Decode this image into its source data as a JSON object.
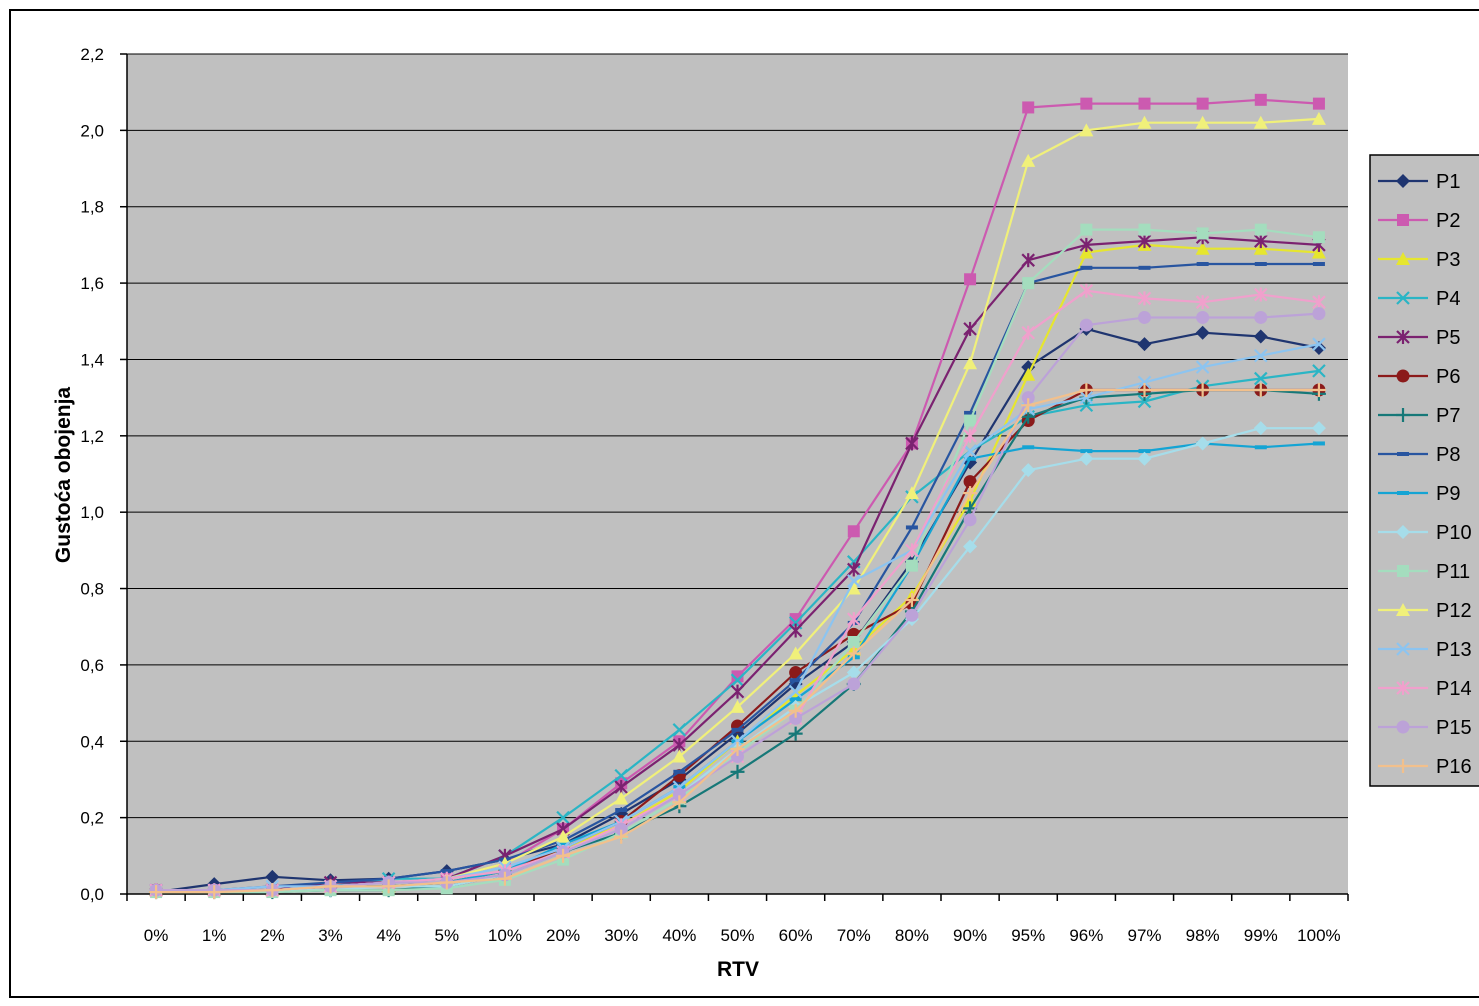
{
  "chart_data": {
    "type": "line",
    "title": "",
    "xlabel": "RTV",
    "ylabel": "Gustoća obojenja",
    "ylim": [
      0,
      2.2
    ],
    "ytick_step": 0.2,
    "ytick_labels": [
      "0,0",
      "0,2",
      "0,4",
      "0,6",
      "0,8",
      "1,0",
      "1,2",
      "1,4",
      "1,6",
      "1,8",
      "2,0",
      "2,2"
    ],
    "grid": true,
    "legend": "right",
    "plot_background": "#C0C0C0",
    "categories": [
      "0%",
      "1%",
      "2%",
      "3%",
      "4%",
      "5%",
      "10%",
      "20%",
      "30%",
      "40%",
      "50%",
      "60%",
      "70%",
      "80%",
      "90%",
      "95%",
      "96%",
      "97%",
      "98%",
      "99%",
      "100%"
    ],
    "series": [
      {
        "name": "P1",
        "color": "#1F3570",
        "marker": "diamond",
        "values": [
          0.005,
          0.026,
          0.045,
          0.036,
          0.04,
          0.06,
          0.09,
          0.13,
          0.21,
          0.3,
          0.42,
          0.55,
          0.66,
          0.87,
          1.13,
          1.38,
          1.48,
          1.44,
          1.47,
          1.46,
          1.43
        ]
      },
      {
        "name": "P2",
        "color": "#CC5AB0",
        "marker": "square",
        "values": [
          0.01,
          0.01,
          0.01,
          0.02,
          0.03,
          0.04,
          0.08,
          0.17,
          0.29,
          0.4,
          0.57,
          0.72,
          0.95,
          1.18,
          1.61,
          2.06,
          2.07,
          2.07,
          2.07,
          2.08,
          2.07
        ]
      },
      {
        "name": "P3",
        "color": "#E6E62E",
        "marker": "triangle",
        "values": [
          0.01,
          0.01,
          0.01,
          0.02,
          0.02,
          0.03,
          0.06,
          0.12,
          0.18,
          0.27,
          0.4,
          0.52,
          0.64,
          0.78,
          1.03,
          1.36,
          1.68,
          1.7,
          1.69,
          1.69,
          1.68
        ]
      },
      {
        "name": "P4",
        "color": "#2AB5C5",
        "marker": "x",
        "values": [
          0.01,
          0.01,
          0.01,
          0.02,
          0.04,
          0.04,
          0.1,
          0.2,
          0.31,
          0.43,
          0.56,
          0.71,
          0.87,
          1.04,
          1.16,
          1.25,
          1.28,
          1.29,
          1.33,
          1.35,
          1.37
        ]
      },
      {
        "name": "P5",
        "color": "#7B2270",
        "marker": "star",
        "values": [
          0.01,
          0.01,
          0.01,
          0.03,
          0.03,
          0.04,
          0.1,
          0.17,
          0.28,
          0.39,
          0.53,
          0.69,
          0.85,
          1.18,
          1.48,
          1.66,
          1.7,
          1.71,
          1.72,
          1.71,
          1.7
        ]
      },
      {
        "name": "P6",
        "color": "#8B1A1A",
        "marker": "circle",
        "values": [
          0.01,
          0.01,
          0.01,
          0.02,
          0.02,
          0.03,
          0.06,
          0.12,
          0.19,
          0.31,
          0.44,
          0.58,
          0.68,
          0.76,
          1.08,
          1.24,
          1.32,
          1.32,
          1.32,
          1.32,
          1.32
        ]
      },
      {
        "name": "P7",
        "color": "#167878",
        "marker": "plus",
        "values": [
          0.005,
          0.005,
          0.005,
          0.01,
          0.01,
          0.02,
          0.05,
          0.11,
          0.16,
          0.23,
          0.32,
          0.42,
          0.55,
          0.74,
          1.01,
          1.25,
          1.3,
          1.31,
          1.32,
          1.32,
          1.31
        ]
      },
      {
        "name": "P8",
        "color": "#2855A0",
        "marker": "dash",
        "values": [
          0.01,
          0.01,
          0.02,
          0.03,
          0.04,
          0.06,
          0.09,
          0.14,
          0.22,
          0.32,
          0.43,
          0.56,
          0.71,
          0.96,
          1.26,
          1.6,
          1.64,
          1.64,
          1.65,
          1.65,
          1.65
        ]
      },
      {
        "name": "P9",
        "color": "#14A4D4",
        "marker": "dash",
        "values": [
          0.01,
          0.01,
          0.01,
          0.02,
          0.02,
          0.03,
          0.06,
          0.13,
          0.19,
          0.28,
          0.4,
          0.51,
          0.62,
          0.86,
          1.14,
          1.17,
          1.16,
          1.16,
          1.18,
          1.17,
          1.18
        ]
      },
      {
        "name": "P10",
        "color": "#A6DDEA",
        "marker": "diamond",
        "values": [
          0.01,
          0.01,
          0.01,
          0.01,
          0.02,
          0.02,
          0.05,
          0.11,
          0.17,
          0.26,
          0.38,
          0.49,
          0.58,
          0.72,
          0.91,
          1.11,
          1.14,
          1.14,
          1.18,
          1.22,
          1.22
        ]
      },
      {
        "name": "P11",
        "color": "#A4DDBE",
        "marker": "square",
        "values": [
          0.005,
          0.005,
          0.005,
          0.01,
          0.01,
          0.015,
          0.037,
          0.09,
          0.16,
          0.25,
          0.37,
          0.48,
          0.66,
          0.86,
          1.24,
          1.6,
          1.74,
          1.74,
          1.73,
          1.74,
          1.72
        ]
      },
      {
        "name": "P12",
        "color": "#F0F07A",
        "marker": "triangle",
        "values": [
          0.01,
          0.01,
          0.01,
          0.02,
          0.03,
          0.04,
          0.08,
          0.15,
          0.25,
          0.36,
          0.49,
          0.63,
          0.8,
          1.05,
          1.39,
          1.92,
          2.0,
          2.02,
          2.02,
          2.02,
          2.03
        ]
      },
      {
        "name": "P13",
        "color": "#8CC4F0",
        "marker": "x",
        "values": [
          0.01,
          0.01,
          0.02,
          0.02,
          0.03,
          0.04,
          0.07,
          0.12,
          0.19,
          0.28,
          0.4,
          0.53,
          0.82,
          0.9,
          1.16,
          1.27,
          1.3,
          1.34,
          1.38,
          1.41,
          1.44
        ]
      },
      {
        "name": "P14",
        "color": "#F0A0CC",
        "marker": "star",
        "values": [
          0.01,
          0.01,
          0.01,
          0.02,
          0.03,
          0.04,
          0.06,
          0.11,
          0.18,
          0.26,
          0.36,
          0.46,
          0.72,
          0.9,
          1.2,
          1.47,
          1.58,
          1.56,
          1.55,
          1.57,
          1.55
        ]
      },
      {
        "name": "P15",
        "color": "#BCA2D8",
        "marker": "circle",
        "values": [
          0.01,
          0.01,
          0.01,
          0.02,
          0.03,
          0.03,
          0.05,
          0.11,
          0.17,
          0.26,
          0.36,
          0.46,
          0.55,
          0.73,
          0.98,
          1.3,
          1.49,
          1.51,
          1.51,
          1.51,
          1.52
        ]
      },
      {
        "name": "P16",
        "color": "#F2C08C",
        "marker": "plus",
        "values": [
          0.005,
          0.005,
          0.01,
          0.02,
          0.02,
          0.03,
          0.04,
          0.1,
          0.15,
          0.24,
          0.38,
          0.48,
          0.63,
          0.77,
          1.05,
          1.28,
          1.32,
          1.32,
          1.32,
          1.32,
          1.32
        ]
      }
    ]
  }
}
